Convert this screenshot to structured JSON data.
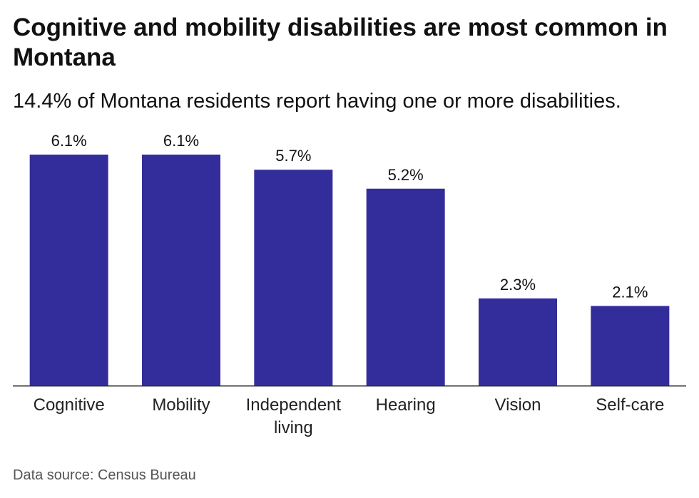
{
  "chart_data": {
    "type": "bar",
    "title": "Cognitive and mobility disabilities are most common in Montana",
    "subtitle": "14.4% of Montana residents report having one or more disabilities.",
    "categories": [
      "Cognitive",
      "Mobility",
      "Independent living",
      "Hearing",
      "Vision",
      "Self-care"
    ],
    "values": [
      6.1,
      6.1,
      5.7,
      5.2,
      2.3,
      2.1
    ],
    "value_labels": [
      "6.1%",
      "6.1%",
      "5.7%",
      "5.2%",
      "2.3%",
      "2.1%"
    ],
    "xlabel": "",
    "ylabel": "",
    "ylim": [
      0,
      6.1
    ],
    "grid": false,
    "legend": "none",
    "bar_color": "#332d9b",
    "source": "Data source: Census Bureau"
  }
}
